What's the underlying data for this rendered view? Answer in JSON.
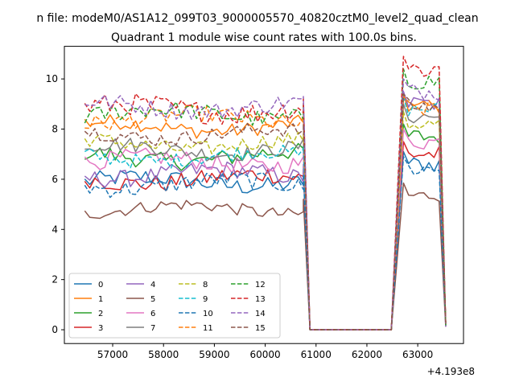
{
  "chart_data": {
    "type": "line",
    "suptitle": "n file: modeM0/AS1A12_099T03_9000005570_40820cztM0_level2_quad_clean",
    "title": "Quadrant 1 module wise count rates with 100.0s bins.",
    "xlabel": "",
    "ylabel": "",
    "x_offset_label": "+4.193e8",
    "x_range": [
      56400,
      63550
    ],
    "xlim": [
      56050,
      63900
    ],
    "ylim": [
      -0.55,
      11.3
    ],
    "x_ticks": [
      57000,
      58000,
      59000,
      60000,
      61000,
      62000,
      63000
    ],
    "x_tick_labels": [
      "57000",
      "58000",
      "59000",
      "60000",
      "61000",
      "62000",
      "63000"
    ],
    "y_ticks": [
      0,
      2,
      4,
      6,
      8,
      10
    ],
    "y_tick_labels": [
      "0",
      "2",
      "4",
      "6",
      "8",
      "10"
    ],
    "grid": false,
    "legend_placement": "lower-left",
    "legend_columns": 4,
    "segments": {
      "plateau1": [
        56450,
        60750
      ],
      "drop": [
        60750,
        60880
      ],
      "zero": [
        60880,
        62550
      ],
      "rise": [
        62550,
        62720
      ],
      "plateau2": [
        62720,
        63450
      ],
      "final": [
        63550,
        0.2
      ]
    },
    "series": [
      {
        "name": "0",
        "color": "#1f77b4",
        "dash": "solid",
        "level1": 5.9,
        "level2": 6.6,
        "noise": 0.35
      },
      {
        "name": "1",
        "color": "#ff7f0e",
        "dash": "solid",
        "level1": 8.1,
        "level2": 8.9,
        "noise": 0.3
      },
      {
        "name": "2",
        "color": "#2ca02c",
        "dash": "solid",
        "level1": 6.9,
        "level2": 7.7,
        "noise": 0.35
      },
      {
        "name": "3",
        "color": "#d62728",
        "dash": "solid",
        "level1": 6.0,
        "level2": 7.0,
        "noise": 0.35
      },
      {
        "name": "4",
        "color": "#9467bd",
        "dash": "solid",
        "level1": 6.2,
        "level2": 9.0,
        "noise": 0.35
      },
      {
        "name": "5",
        "color": "#8c564b",
        "dash": "solid",
        "level1": 4.8,
        "level2": 5.35,
        "noise": 0.25
      },
      {
        "name": "6",
        "color": "#e377c2",
        "dash": "solid",
        "level1": 6.7,
        "level2": 7.5,
        "noise": 0.35
      },
      {
        "name": "7",
        "color": "#7f7f7f",
        "dash": "solid",
        "level1": 7.2,
        "level2": 8.5,
        "noise": 0.3
      },
      {
        "name": "8",
        "color": "#bcbd22",
        "dash": "dashed",
        "level1": 7.4,
        "level2": 8.2,
        "noise": 0.3
      },
      {
        "name": "9",
        "color": "#17becf",
        "dash": "dashed",
        "level1": 6.9,
        "level2": 8.8,
        "noise": 0.3
      },
      {
        "name": "10",
        "color": "#1f77b4",
        "dash": "dashed",
        "level1": 5.8,
        "level2": 6.4,
        "noise": 0.35
      },
      {
        "name": "11",
        "color": "#ff7f0e",
        "dash": "dashed",
        "level1": 8.4,
        "level2": 8.8,
        "noise": 0.35
      },
      {
        "name": "12",
        "color": "#2ca02c",
        "dash": "dashed",
        "level1": 8.6,
        "level2": 9.9,
        "noise": 0.35
      },
      {
        "name": "13",
        "color": "#d62728",
        "dash": "dashed",
        "level1": 8.8,
        "level2": 10.4,
        "noise": 0.45
      },
      {
        "name": "14",
        "color": "#9467bd",
        "dash": "dashed",
        "level1": 8.9,
        "level2": 9.5,
        "noise": 0.35
      },
      {
        "name": "15",
        "color": "#8c564b",
        "dash": "dashed",
        "level1": 7.8,
        "level2": 8.9,
        "noise": 0.3
      }
    ]
  }
}
